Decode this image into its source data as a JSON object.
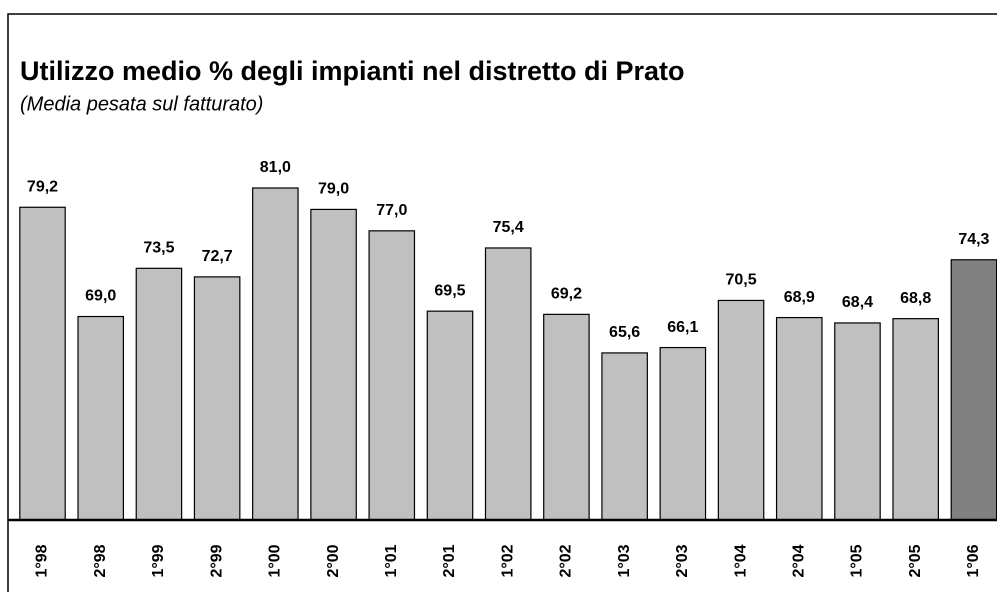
{
  "chart_data": {
    "type": "bar",
    "title": "Utilizzo medio % degli impianti nel distretto di Prato",
    "subtitle": "(Media pesata sul fatturato)",
    "categories": [
      "1°98",
      "2°98",
      "1°99",
      "2°99",
      "1°00",
      "2°00",
      "1°01",
      "2°01",
      "1°02",
      "2°02",
      "1°03",
      "2°03",
      "1°04",
      "2°04",
      "1°05",
      "2°05",
      "1°06"
    ],
    "values": [
      79.2,
      69.0,
      73.5,
      72.7,
      81.0,
      79.0,
      77.0,
      69.5,
      75.4,
      69.2,
      65.6,
      66.1,
      70.5,
      68.9,
      68.4,
      68.8,
      74.3
    ],
    "value_labels": [
      "79,2",
      "69,0",
      "73,5",
      "72,7",
      "81,0",
      "79,0",
      "77,0",
      "69,5",
      "75,4",
      "69,2",
      "65,6",
      "66,1",
      "70,5",
      "68,9",
      "68,4",
      "68,8",
      "74,3"
    ],
    "colors": [
      "#c0c0c0",
      "#c0c0c0",
      "#c0c0c0",
      "#c0c0c0",
      "#c0c0c0",
      "#c0c0c0",
      "#c0c0c0",
      "#c0c0c0",
      "#c0c0c0",
      "#c0c0c0",
      "#c0c0c0",
      "#c0c0c0",
      "#c0c0c0",
      "#c0c0c0",
      "#c0c0c0",
      "#c0c0c0",
      "#808080"
    ],
    "ylim": [
      50,
      90
    ],
    "grid": false
  }
}
